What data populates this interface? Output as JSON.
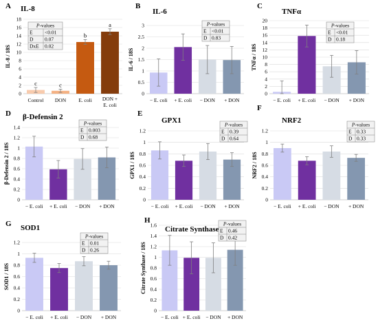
{
  "chart_data": [
    {
      "type": "bar",
      "panel": "A",
      "title": "IL-8",
      "ylabel": "IL-8 / 18S",
      "ylim": [
        0,
        18
      ],
      "yticks": [
        0,
        2,
        4,
        6,
        8,
        10,
        12,
        14,
        16,
        18
      ],
      "tick_labels": [
        "0",
        "2",
        "4",
        "6",
        "8",
        "10",
        "12",
        "14",
        "16",
        "18"
      ],
      "categories": [
        "Control",
        "DON",
        "E. coli",
        "DON + E. coli"
      ],
      "values": [
        0.9,
        0.7,
        12.5,
        15.0
      ],
      "errors": [
        0.6,
        0.4,
        0.6,
        0.7
      ],
      "colors": [
        "#f8cbad",
        "#f4b183",
        "#c55a11",
        "#843c0c"
      ],
      "letters": [
        "c",
        "c",
        "b",
        "a"
      ],
      "pvalues": {
        "header": "P-values",
        "rows": [
          [
            "E",
            "<0.01"
          ],
          [
            "D",
            "0.07"
          ],
          [
            "DxE",
            "0.02"
          ]
        ]
      }
    },
    {
      "type": "bar",
      "panel": "B",
      "title": "IL-6",
      "ylabel": "IL-6 / 18S",
      "ylim": [
        0,
        3
      ],
      "yticks": [
        0,
        0.5,
        1,
        1.5,
        2,
        2.5,
        3
      ],
      "tick_labels": [
        "0",
        "0.5",
        "1",
        "1.5",
        "2",
        "2.5",
        "3"
      ],
      "categories": [
        "− E. coli",
        "+ E. coli",
        "− DON",
        "+ DON"
      ],
      "values": [
        0.93,
        2.05,
        1.5,
        1.48
      ],
      "errors": [
        0.6,
        0.58,
        0.62,
        0.6
      ],
      "colors": [
        "#c9c9f5",
        "#7030a0",
        "#d6dce4",
        "#8497b0"
      ],
      "pvalues": {
        "header": "P-values",
        "rows": [
          [
            "E",
            "<0.01"
          ],
          [
            "D",
            "0.83"
          ]
        ]
      }
    },
    {
      "type": "bar",
      "panel": "C",
      "title": "TNFα",
      "ylabel": "TNFα / 18S",
      "ylim": [
        0,
        20
      ],
      "yticks": [
        0,
        2,
        4,
        6,
        8,
        10,
        12,
        14,
        16,
        18,
        20
      ],
      "tick_labels": [
        "0",
        "2",
        "4",
        "6",
        "8",
        "10",
        "12",
        "14",
        "16",
        "18",
        "20"
      ],
      "categories": [
        "− E. coli",
        "+ E. coli",
        "− DON",
        "+ DON"
      ],
      "values": [
        0.5,
        15.8,
        7.5,
        8.6
      ],
      "errors": [
        3.0,
        3.0,
        3.0,
        3.2
      ],
      "colors": [
        "#c9c9f5",
        "#7030a0",
        "#d6dce4",
        "#8497b0"
      ],
      "pvalues": {
        "header": "P-values",
        "rows": [
          [
            "E",
            "<0.01"
          ],
          [
            "D",
            "0.18"
          ]
        ]
      }
    },
    {
      "type": "bar",
      "panel": "D",
      "title": "β-Defensin 2",
      "ylabel": "β-Defensin 2 / 18S",
      "ylim": [
        0,
        1.4
      ],
      "yticks": [
        0,
        0.2,
        0.4,
        0.6,
        0.8,
        1,
        1.2,
        1.4
      ],
      "tick_labels": [
        "0",
        "0.2",
        "0.4",
        "0.6",
        "0.8",
        "1",
        "1.2",
        "1.4"
      ],
      "categories": [
        "− E. coli",
        "+ E. coli",
        "− DON",
        "+ DON"
      ],
      "values": [
        1.03,
        0.59,
        0.79,
        0.82
      ],
      "errors": [
        0.2,
        0.17,
        0.2,
        0.2
      ],
      "colors": [
        "#c9c9f5",
        "#7030a0",
        "#d6dce4",
        "#8497b0"
      ],
      "pvalues": {
        "header": "P-values",
        "rows": [
          [
            "E",
            "0.003"
          ],
          [
            "D",
            "0.68"
          ]
        ]
      }
    },
    {
      "type": "bar",
      "panel": "E",
      "title": "GPX1",
      "ylabel": "GPX1 / 18S",
      "ylim": [
        0,
        1.2
      ],
      "yticks": [
        0,
        0.2,
        0.4,
        0.6,
        0.8,
        1,
        1.2
      ],
      "tick_labels": [
        "0",
        "0.2",
        "0.4",
        "0.6",
        "0.8",
        "1",
        "1.2"
      ],
      "categories": [
        "− E. coli",
        "+ E. coli",
        "− DON",
        "+ DON"
      ],
      "values": [
        0.86,
        0.68,
        0.84,
        0.7
      ],
      "errors": [
        0.15,
        0.1,
        0.14,
        0.12
      ],
      "colors": [
        "#c9c9f5",
        "#7030a0",
        "#d6dce4",
        "#8497b0"
      ],
      "pvalues": {
        "header": "P-values",
        "rows": [
          [
            "E",
            "0.39"
          ],
          [
            "D",
            "0.64"
          ]
        ]
      }
    },
    {
      "type": "bar",
      "panel": "F",
      "title": "NRF2",
      "ylabel": "NRF2 / 18S",
      "ylim": [
        0,
        1.2
      ],
      "yticks": [
        0,
        0.2,
        0.4,
        0.6,
        0.8,
        1,
        1.2
      ],
      "tick_labels": [
        "0",
        "0.2",
        "0.4",
        "0.6",
        "0.8",
        "1",
        "1.2"
      ],
      "categories": [
        "− E. coli",
        "+ E. coli",
        "− DON",
        "+ DON"
      ],
      "values": [
        0.9,
        0.68,
        0.84,
        0.73
      ],
      "errors": [
        0.07,
        0.07,
        0.1,
        0.06
      ],
      "colors": [
        "#c9c9f5",
        "#7030a0",
        "#d6dce4",
        "#8497b0"
      ],
      "pvalues": {
        "header": "P-values",
        "rows": [
          [
            "E",
            "0.33"
          ],
          [
            "D",
            "0.33"
          ]
        ]
      }
    },
    {
      "type": "bar",
      "panel": "G",
      "title": "SOD1",
      "ylabel": "SOD1 / 18S",
      "ylim": [
        0,
        1.2
      ],
      "yticks": [
        0,
        0.2,
        0.4,
        0.6,
        0.8,
        1,
        1.2
      ],
      "tick_labels": [
        "0",
        "0.2",
        "0.4",
        "0.6",
        "0.8",
        "1",
        "1.2"
      ],
      "categories": [
        "− E. coli",
        "+ E. coli",
        "− DON",
        "+ DON"
      ],
      "values": [
        0.93,
        0.75,
        0.87,
        0.8
      ],
      "errors": [
        0.08,
        0.08,
        0.08,
        0.07
      ],
      "colors": [
        "#c9c9f5",
        "#7030a0",
        "#d6dce4",
        "#8497b0"
      ],
      "pvalues": {
        "header": "P-values",
        "rows": [
          [
            "E",
            "0.01"
          ],
          [
            "D",
            "0.26"
          ]
        ]
      }
    },
    {
      "type": "bar",
      "panel": "H",
      "title": "Citrate Synthase",
      "ylabel": "Citrate Synthase / 18S",
      "ylim": [
        0,
        1.6
      ],
      "yticks": [
        0,
        0.2,
        0.4,
        0.6,
        0.8,
        1,
        1.2,
        1.4,
        1.6
      ],
      "tick_labels": [
        "0",
        "0.2",
        "0.4",
        "0.6",
        "0.8",
        "1",
        "1.2",
        "1.4",
        "1.6"
      ],
      "categories": [
        "− E. coli",
        "+ E. coli",
        "− DON",
        "+ DON"
      ],
      "values": [
        1.13,
        0.99,
        0.99,
        1.14
      ],
      "errors": [
        0.28,
        0.3,
        0.28,
        0.29
      ],
      "colors": [
        "#c9c9f5",
        "#7030a0",
        "#d6dce4",
        "#8497b0"
      ],
      "pvalues": {
        "header": "P-values",
        "rows": [
          [
            "E",
            "0.46"
          ],
          [
            "D",
            "0.42"
          ]
        ]
      }
    }
  ]
}
